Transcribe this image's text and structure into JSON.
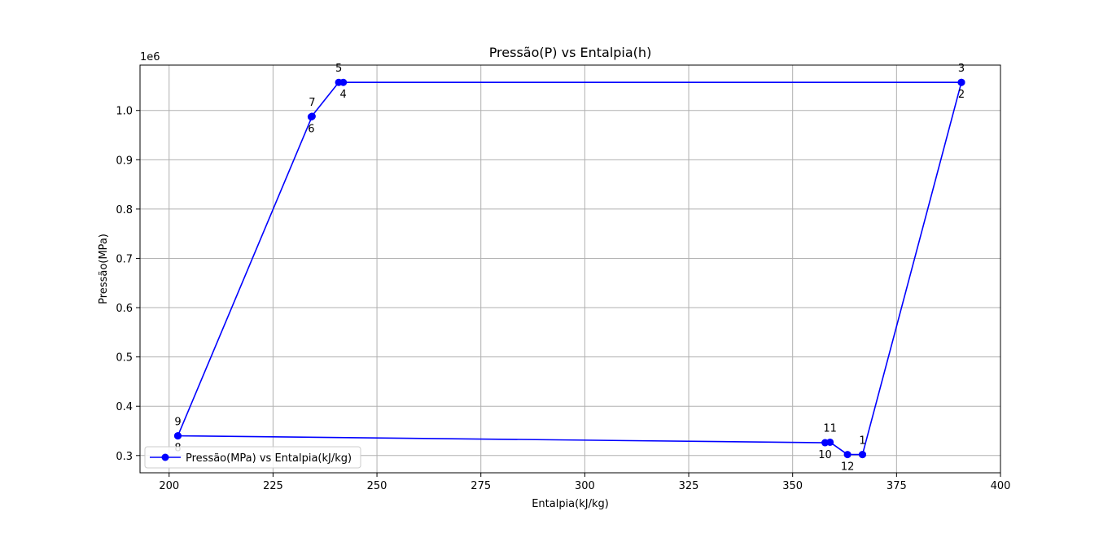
{
  "chart_data": {
    "type": "line",
    "title": "Pressão(P) vs Entalpia(h)",
    "xlabel": "Entalpia(kJ/kg)",
    "ylabel": "Pressão(MPa)",
    "y_offset_text": "1e6",
    "xlim": [
      193,
      400
    ],
    "ylim": [
      265000,
      1092000
    ],
    "xticks": [
      200,
      225,
      250,
      275,
      300,
      325,
      350,
      375,
      400
    ],
    "yticks": [
      300000,
      400000,
      500000,
      600000,
      700000,
      800000,
      900000,
      1000000
    ],
    "ytick_labels": [
      "0.3",
      "0.4",
      "0.5",
      "0.6",
      "0.7",
      "0.8",
      "0.9",
      "1.0"
    ],
    "grid": true,
    "legend_position": "lower-left",
    "series": [
      {
        "name": "Pressão(MPa) vs Entalpia(kJ/kg)",
        "color": "#0000ff",
        "marker": "circle",
        "x": [
          366.8,
          390.6,
          390.6,
          241.9,
          240.8,
          234.2,
          234.4,
          202.1,
          202.1,
          357.8,
          359.0,
          363.2,
          366.8
        ],
        "y": [
          302000,
          1057000,
          1057000,
          1057000,
          1057000,
          987000,
          988000,
          340000,
          340000,
          326000,
          327000,
          302000,
          302000
        ]
      }
    ],
    "point_labels": [
      {
        "text": "1",
        "x": 366.8,
        "y": 302000,
        "pos": "above"
      },
      {
        "text": "2",
        "x": 390.6,
        "y": 1057000,
        "pos": "below"
      },
      {
        "text": "3",
        "x": 390.6,
        "y": 1057000,
        "pos": "above"
      },
      {
        "text": "4",
        "x": 241.9,
        "y": 1057000,
        "pos": "below"
      },
      {
        "text": "5",
        "x": 240.8,
        "y": 1057000,
        "pos": "above"
      },
      {
        "text": "6",
        "x": 234.2,
        "y": 987000,
        "pos": "below"
      },
      {
        "text": "7",
        "x": 234.4,
        "y": 988000,
        "pos": "above"
      },
      {
        "text": "8",
        "x": 202.1,
        "y": 340000,
        "pos": "below"
      },
      {
        "text": "9",
        "x": 202.1,
        "y": 340000,
        "pos": "above"
      },
      {
        "text": "10",
        "x": 357.8,
        "y": 326000,
        "pos": "below"
      },
      {
        "text": "11",
        "x": 359.0,
        "y": 327000,
        "pos": "above"
      },
      {
        "text": "12",
        "x": 363.2,
        "y": 302000,
        "pos": "below"
      }
    ]
  }
}
